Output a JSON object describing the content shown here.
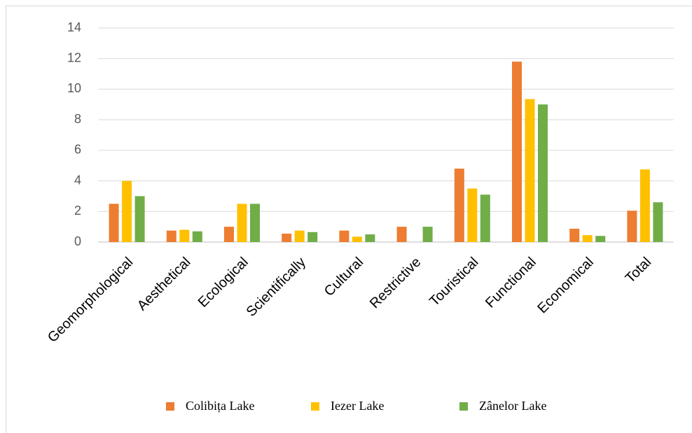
{
  "chart_data": {
    "type": "bar",
    "categories": [
      "Geomorphological",
      "Aesthetical",
      "Ecological",
      "Scientifically",
      "Cultural",
      "Restrictive",
      "Touristical",
      "Functional",
      "Economical",
      "Total"
    ],
    "series": [
      {
        "name": "Colibița Lake",
        "color": "#ed7d31",
        "values": [
          2.5,
          0.75,
          1.0,
          0.55,
          0.75,
          1.0,
          4.8,
          11.8,
          0.87,
          2.05
        ]
      },
      {
        "name": "Iezer Lake",
        "color": "#ffc000",
        "values": [
          4.0,
          0.8,
          2.5,
          0.75,
          0.35,
          0,
          3.5,
          9.35,
          0.45,
          4.75
        ]
      },
      {
        "name": "Zânelor Lake",
        "color": "#70ad47",
        "values": [
          3.0,
          0.7,
          2.5,
          0.65,
          0.5,
          1.0,
          3.1,
          9.0,
          0.4,
          2.6
        ]
      }
    ],
    "ylim": [
      0,
      14
    ],
    "yticks": [
      0,
      2,
      4,
      6,
      8,
      10,
      12,
      14
    ],
    "grid": true,
    "legend": "bottom"
  }
}
